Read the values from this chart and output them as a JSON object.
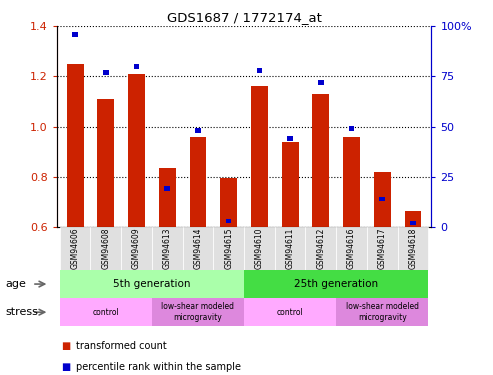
{
  "title": "GDS1687 / 1772174_at",
  "samples": [
    "GSM94606",
    "GSM94608",
    "GSM94609",
    "GSM94613",
    "GSM94614",
    "GSM94615",
    "GSM94610",
    "GSM94611",
    "GSM94612",
    "GSM94616",
    "GSM94617",
    "GSM94618"
  ],
  "transformed_count": [
    1.25,
    1.11,
    1.21,
    0.835,
    0.96,
    0.795,
    1.16,
    0.94,
    1.13,
    0.96,
    0.82,
    0.665
  ],
  "percentile_rank": [
    96,
    77,
    80,
    19,
    48,
    3,
    78,
    44,
    72,
    49,
    14,
    2
  ],
  "ylim_left": [
    0.6,
    1.4
  ],
  "ylim_right": [
    0,
    100
  ],
  "yticks_left": [
    0.6,
    0.8,
    1.0,
    1.2,
    1.4
  ],
  "yticks_right": [
    0,
    25,
    50,
    75,
    100
  ],
  "bar_color_red": "#cc2200",
  "bar_color_blue": "#0000cc",
  "bar_width": 0.55,
  "age_row": [
    {
      "label": "5th generation",
      "start": 0,
      "end": 5,
      "color": "#aaffaa"
    },
    {
      "label": "25th generation",
      "start": 6,
      "end": 11,
      "color": "#44dd44"
    }
  ],
  "stress_row": [
    {
      "label": "control",
      "start": 0,
      "end": 2,
      "color": "#ffaaff"
    },
    {
      "label": "low-shear modeled\nmicrogravity",
      "start": 3,
      "end": 5,
      "color": "#dd88dd"
    },
    {
      "label": "control",
      "start": 6,
      "end": 8,
      "color": "#ffaaff"
    },
    {
      "label": "low-shear modeled\nmicrogravity",
      "start": 9,
      "end": 11,
      "color": "#dd88dd"
    }
  ],
  "age_label": "age",
  "stress_label": "stress",
  "legend_red": "transformed count",
  "legend_blue": "percentile rank within the sample",
  "left_axis_color": "#cc2200",
  "right_axis_color": "#0000cc",
  "dotted_line_color": "#000000",
  "tick_label_color": "#888888",
  "background_color": "#ffffff"
}
